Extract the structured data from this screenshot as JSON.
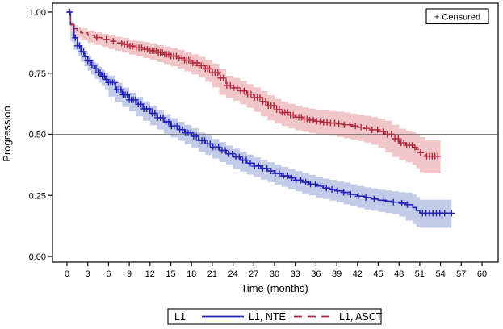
{
  "figure": {
    "kind": "kaplan-meier-survival-plot",
    "background": "#ffffff"
  },
  "chart_data": {
    "type": "line",
    "subtype": "kaplan-meier-step",
    "title": "",
    "xlabel": "Time (months)",
    "ylabel": "Progression",
    "censored_label": "+ Censured",
    "grid": false,
    "x_axis": {
      "min": 0,
      "max": 60,
      "ticks": [
        0,
        3,
        6,
        9,
        12,
        15,
        18,
        21,
        24,
        27,
        30,
        33,
        36,
        39,
        42,
        45,
        48,
        51,
        54,
        57,
        60
      ]
    },
    "y_axis": {
      "min": 0,
      "max": 1,
      "tick_values": [
        0,
        0.25,
        0.5,
        0.75,
        1
      ],
      "tick_labels": [
        "0.00",
        "0.25",
        "0.50",
        "0.75",
        "1.00"
      ]
    },
    "reference_line": {
      "y": 0.5,
      "color": "#808080"
    },
    "legend": {
      "position": "bottom",
      "group_label": "L1"
    },
    "series": [
      {
        "name": "L1, NTE",
        "color": "#2424B4",
        "band_color": "#C2CBE8",
        "line_style": "solid",
        "dash": "",
        "band_start": 0.5,
        "points": [
          [
            0,
            1.0
          ],
          [
            0.5,
            0.95
          ],
          [
            1,
            0.895
          ],
          [
            1.5,
            0.862
          ],
          [
            2,
            0.838
          ],
          [
            2.5,
            0.818
          ],
          [
            3,
            0.8
          ],
          [
            3.5,
            0.783
          ],
          [
            4,
            0.768
          ],
          [
            4.5,
            0.752
          ],
          [
            5,
            0.738
          ],
          [
            5.5,
            0.724
          ],
          [
            6,
            0.712
          ],
          [
            7,
            0.683
          ],
          [
            8,
            0.662
          ],
          [
            9,
            0.641
          ],
          [
            10,
            0.623
          ],
          [
            11,
            0.604
          ],
          [
            12,
            0.586
          ],
          [
            13,
            0.568
          ],
          [
            14,
            0.551
          ],
          [
            15,
            0.534
          ],
          [
            16,
            0.519
          ],
          [
            17,
            0.506
          ],
          [
            18,
            0.492
          ],
          [
            19,
            0.475
          ],
          [
            20,
            0.461
          ],
          [
            21,
            0.448
          ],
          [
            22,
            0.434
          ],
          [
            23,
            0.42
          ],
          [
            24,
            0.407
          ],
          [
            25,
            0.394
          ],
          [
            26,
            0.382
          ],
          [
            27,
            0.37
          ],
          [
            28,
            0.36
          ],
          [
            29,
            0.35
          ],
          [
            30,
            0.34
          ],
          [
            31,
            0.33
          ],
          [
            32,
            0.321
          ],
          [
            33,
            0.312
          ],
          [
            34,
            0.304
          ],
          [
            35,
            0.296
          ],
          [
            36,
            0.288
          ],
          [
            37,
            0.28
          ],
          [
            38,
            0.274
          ],
          [
            39,
            0.268
          ],
          [
            40,
            0.262
          ],
          [
            41,
            0.254
          ],
          [
            42,
            0.247
          ],
          [
            43,
            0.241
          ],
          [
            44,
            0.235
          ],
          [
            45,
            0.23
          ],
          [
            46,
            0.226
          ],
          [
            47,
            0.222
          ],
          [
            48,
            0.218
          ],
          [
            49,
            0.212
          ],
          [
            50,
            0.2
          ],
          [
            50.5,
            0.188
          ],
          [
            51,
            0.177
          ],
          [
            55.6,
            0.177
          ]
        ],
        "band_halfwidth": [
          [
            0.5,
            0.012
          ],
          [
            2,
            0.02
          ],
          [
            6,
            0.028
          ],
          [
            12,
            0.031
          ],
          [
            24,
            0.034
          ],
          [
            36,
            0.038
          ],
          [
            48,
            0.045
          ],
          [
            50.5,
            0.055
          ],
          [
            55.5,
            0.06
          ]
        ],
        "censor_months": [
          0.4,
          1.2,
          1.5,
          1.8,
          2.1,
          2.4,
          2.7,
          3.0,
          3.3,
          3.6,
          3.9,
          4.2,
          4.5,
          4.8,
          5.1,
          5.4,
          5.7,
          6.0,
          6.3,
          6.6,
          6.9,
          7.2,
          7.5,
          7.8,
          8.1,
          8.4,
          8.7,
          9.0,
          9.3,
          9.6,
          9.9,
          10.3,
          10.7,
          11.1,
          11.5,
          11.9,
          12.3,
          12.7,
          13.1,
          13.5,
          13.9,
          14.3,
          14.7,
          15.1,
          15.5,
          15.9,
          16.3,
          16.7,
          17.1,
          17.5,
          17.9,
          18.3,
          18.7,
          19.1,
          19.5,
          19.9,
          20.3,
          20.7,
          21.1,
          21.5,
          21.9,
          22.4,
          22.9,
          23.4,
          23.9,
          24.4,
          24.9,
          25.4,
          25.9,
          26.5,
          27.1,
          27.7,
          28.3,
          28.9,
          29.5,
          30.1,
          30.7,
          31.3,
          31.9,
          32.5,
          33.1,
          33.8,
          34.5,
          35.2,
          35.9,
          36.7,
          37.5,
          38.3,
          39.1,
          40.0,
          41.0,
          42.1,
          43.2,
          44.4,
          45.8,
          47.2,
          48.4,
          49.2,
          51.4,
          51.9,
          52.4,
          52.9,
          53.4,
          53.9,
          54.6,
          55.6
        ]
      },
      {
        "name": "L1, ASCT",
        "color": "#B02A3C",
        "band_color": "#F0C6C8",
        "line_style": "dashed",
        "dash": "6 4",
        "band_start": 0.5,
        "points": [
          [
            0,
            1.0
          ],
          [
            0.5,
            0.948
          ],
          [
            1,
            0.932
          ],
          [
            1.5,
            0.922
          ],
          [
            2,
            0.915
          ],
          [
            3,
            0.905
          ],
          [
            4,
            0.896
          ],
          [
            5,
            0.888
          ],
          [
            6,
            0.881
          ],
          [
            7,
            0.874
          ],
          [
            8,
            0.868
          ],
          [
            9,
            0.861
          ],
          [
            10,
            0.854
          ],
          [
            11,
            0.848
          ],
          [
            12,
            0.842
          ],
          [
            13,
            0.835
          ],
          [
            14,
            0.827
          ],
          [
            15,
            0.82
          ],
          [
            16,
            0.812
          ],
          [
            17,
            0.803
          ],
          [
            18,
            0.792
          ],
          [
            19,
            0.781
          ],
          [
            20,
            0.768
          ],
          [
            21,
            0.752
          ],
          [
            22,
            0.73
          ],
          [
            23,
            0.7
          ],
          [
            24,
            0.69
          ],
          [
            25,
            0.678
          ],
          [
            26,
            0.664
          ],
          [
            27,
            0.65
          ],
          [
            28,
            0.634
          ],
          [
            29,
            0.617
          ],
          [
            30,
            0.601
          ],
          [
            31,
            0.589
          ],
          [
            32,
            0.579
          ],
          [
            33,
            0.57
          ],
          [
            34,
            0.563
          ],
          [
            35,
            0.558
          ],
          [
            36,
            0.553
          ],
          [
            37,
            0.549
          ],
          [
            38,
            0.546
          ],
          [
            39,
            0.543
          ],
          [
            40,
            0.539
          ],
          [
            41,
            0.534
          ],
          [
            42,
            0.529
          ],
          [
            43,
            0.524
          ],
          [
            44,
            0.518
          ],
          [
            45,
            0.511
          ],
          [
            46,
            0.5
          ],
          [
            47,
            0.482
          ],
          [
            48,
            0.465
          ],
          [
            49,
            0.455
          ],
          [
            50,
            0.447
          ],
          [
            50.5,
            0.438
          ],
          [
            51,
            0.425
          ],
          [
            51.8,
            0.41
          ],
          [
            54,
            0.41
          ]
        ],
        "band_halfwidth": [
          [
            0.5,
            0.013
          ],
          [
            2,
            0.018
          ],
          [
            6,
            0.024
          ],
          [
            12,
            0.03
          ],
          [
            24,
            0.04
          ],
          [
            36,
            0.048
          ],
          [
            44,
            0.052
          ],
          [
            48,
            0.058
          ],
          [
            51.8,
            0.065
          ],
          [
            54,
            0.07
          ]
        ],
        "censor_months": [
          4.3,
          5.7,
          6.7,
          7.9,
          8.3,
          8.7,
          9.1,
          9.5,
          10.0,
          10.4,
          10.8,
          11.2,
          11.6,
          12.0,
          12.3,
          12.6,
          12.9,
          13.2,
          13.5,
          13.8,
          14.1,
          14.4,
          14.7,
          15.0,
          15.4,
          15.8,
          16.2,
          16.6,
          17.0,
          17.3,
          17.6,
          17.9,
          18.2,
          18.5,
          18.8,
          19.1,
          19.4,
          19.7,
          20.0,
          20.3,
          20.6,
          21.0,
          21.4,
          21.8,
          22.2,
          22.6,
          23.1,
          23.6,
          24.1,
          24.6,
          25.1,
          25.6,
          26.1,
          26.6,
          27.1,
          27.5,
          27.9,
          28.3,
          28.7,
          29.1,
          29.5,
          29.9,
          30.3,
          30.7,
          31.1,
          31.5,
          31.9,
          32.3,
          32.7,
          33.1,
          33.5,
          33.9,
          34.3,
          34.7,
          35.1,
          35.6,
          36.1,
          36.6,
          37.1,
          37.6,
          38.1,
          38.7,
          39.3,
          40.1,
          40.9,
          41.7,
          42.5,
          43.3,
          44.1,
          44.9,
          45.7,
          46.3,
          46.9,
          47.4,
          47.9,
          48.3,
          48.7,
          49.1,
          49.5,
          49.9,
          50.3,
          51.1,
          52.0,
          52.4,
          52.8,
          53.2,
          53.6
        ]
      }
    ]
  }
}
